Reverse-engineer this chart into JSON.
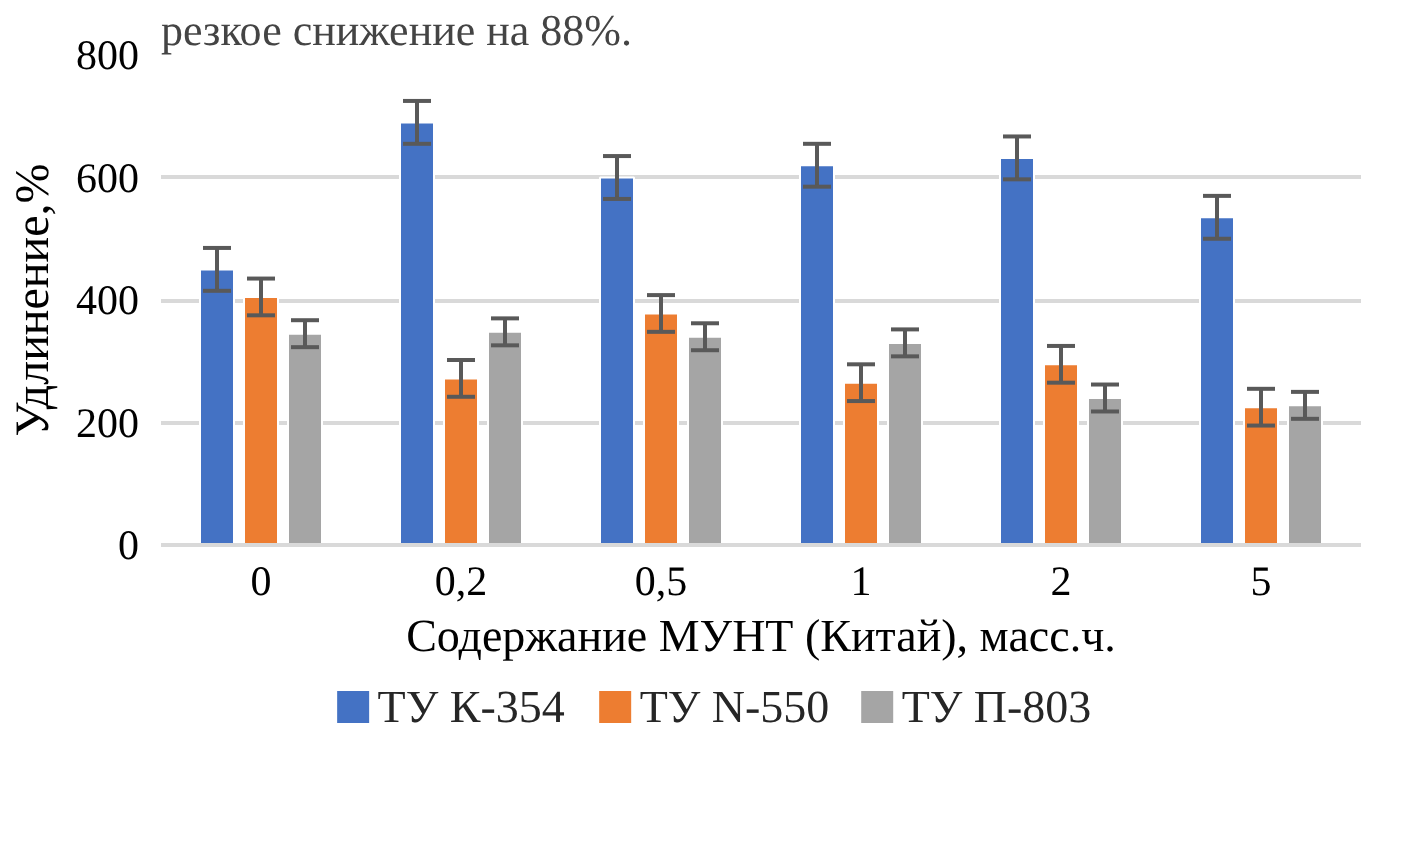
{
  "chart_data": {
    "type": "bar",
    "xlabel": "Содержание МУНТ (Китай), масс.ч.",
    "ylabel": "Удлинение,%",
    "annotations": [
      "резкое снижение на 88%."
    ],
    "categories": [
      "0",
      "0,2",
      "0,5",
      "1",
      "2",
      "5"
    ],
    "series": [
      {
        "name": "ТУ К-354",
        "color": "#4472c4",
        "values": [
          450,
          690,
          600,
          620,
          632,
          535
        ],
        "errors": [
          35,
          35,
          35,
          35,
          35,
          35
        ]
      },
      {
        "name": "ТУ N-550",
        "color": "#ed7d31",
        "values": [
          405,
          272,
          378,
          265,
          295,
          225
        ],
        "errors": [
          30,
          30,
          30,
          30,
          30,
          30
        ]
      },
      {
        "name": "ТУ П-803",
        "color": "#a5a5a5",
        "values": [
          345,
          348,
          340,
          330,
          240,
          228
        ],
        "errors": [
          22,
          22,
          22,
          22,
          22,
          22
        ]
      }
    ],
    "ylim": [
      0,
      800
    ],
    "yticks": [
      0,
      200,
      400,
      600,
      800
    ],
    "grid": "y",
    "legend": "bottom"
  }
}
